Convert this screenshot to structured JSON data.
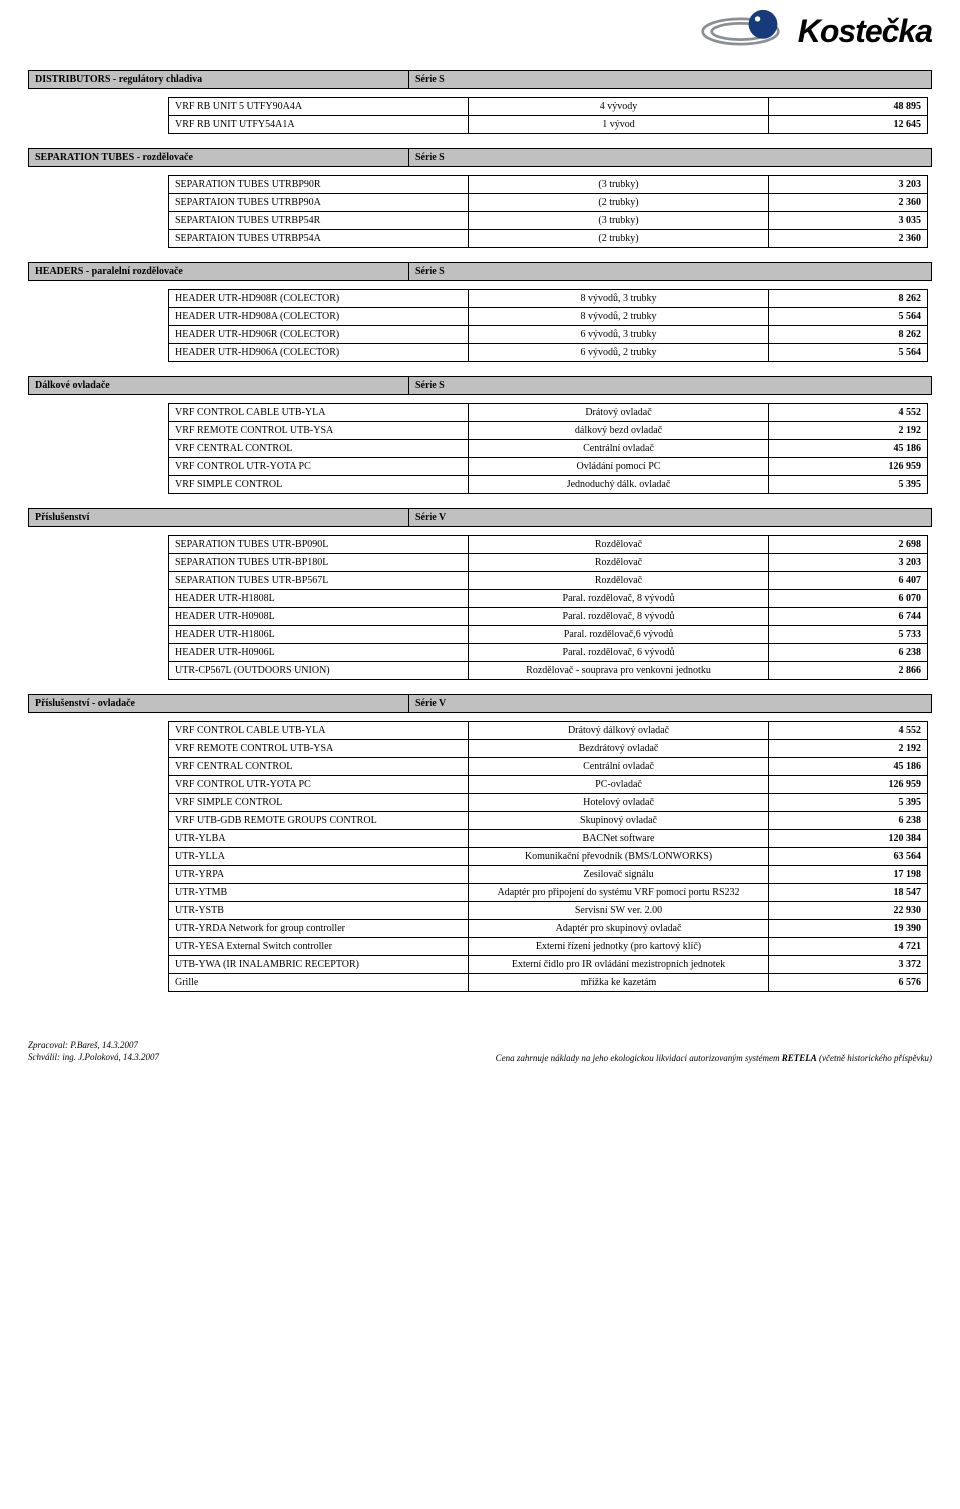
{
  "brand": {
    "name": "Kostečka"
  },
  "sections": [
    {
      "title": "DISTRIBUTORS - regulátory chladiva",
      "series": "Série S",
      "rows": [
        {
          "c1": "VRF RB UNIT 5 UTFY90A4A",
          "c2": "4 vývody",
          "c3": "48 895"
        },
        {
          "c1": "VRF RB UNIT UTFY54A1A",
          "c2": "1 vývod",
          "c3": "12 645"
        }
      ]
    },
    {
      "title": "SEPARATION TUBES - rozdělovače",
      "series": "Série S",
      "rows": [
        {
          "c1": "SEPARATION TUBES UTRBP90R",
          "c2": "(3 trubky)",
          "c3": "3 203"
        },
        {
          "c1": "SEPARTAION TUBES UTRBP90A",
          "c2": "(2 trubky)",
          "c3": "2 360"
        },
        {
          "c1": "SEPARTAION TUBES UTRBP54R",
          "c2": "(3 trubky)",
          "c3": "3 035"
        },
        {
          "c1": "SEPARTAION TUBES UTRBP54A",
          "c2": "(2 trubky)",
          "c3": "2 360"
        }
      ]
    },
    {
      "title": "HEADERS - paralelní rozdělovače",
      "series": "Série S",
      "rows": [
        {
          "c1": "HEADER UTR-HD908R (COLECTOR)",
          "c2": "8 vývodů, 3 trubky",
          "c3": "8 262"
        },
        {
          "c1": "HEADER UTR-HD908A (COLECTOR)",
          "c2": "8 vývodů, 2 trubky",
          "c3": "5 564"
        },
        {
          "c1": "HEADER UTR-HD906R (COLECTOR)",
          "c2": "6 vývodů, 3 trubky",
          "c3": "8 262"
        },
        {
          "c1": "HEADER UTR-HD906A (COLECTOR)",
          "c2": "6 vývodů, 2 trubky",
          "c3": "5 564"
        }
      ]
    },
    {
      "title": "Dálkové ovladače",
      "series": "Série S",
      "rows": [
        {
          "c1": "VRF CONTROL CABLE UTB-YLA",
          "c2": "Drátový ovladač",
          "c3": "4 552"
        },
        {
          "c1": "VRF REMOTE CONTROL UTB-YSA",
          "c2": "dálkový bezd ovladač",
          "c3": "2 192"
        },
        {
          "c1": "VRF CENTRAL CONTROL",
          "c2": "Centrální ovladač",
          "c3": "45 186"
        },
        {
          "c1": "VRF CONTROL UTR-YOTA PC",
          "c2": "Ovládání pomocí PC",
          "c3": "126 959"
        },
        {
          "c1": "VRF SIMPLE CONTROL",
          "c2": "Jednoduchý dálk. ovladač",
          "c3": "5 395"
        }
      ]
    },
    {
      "title": "Příslušenství",
      "series": "Série V",
      "rows": [
        {
          "c1": "SEPARATION TUBES UTR-BP090L",
          "c2": "Rozdělovač",
          "c3": "2 698"
        },
        {
          "c1": "SEPARATION TUBES UTR-BP180L",
          "c2": "Rozdělovač",
          "c3": "3 203"
        },
        {
          "c1": "SEPARATION TUBES UTR-BP567L",
          "c2": "Rozdělovač",
          "c3": "6 407"
        },
        {
          "c1": "HEADER UTR-H1808L",
          "c2": "Paral. rozdělovač, 8 vývodů",
          "c3": "6 070"
        },
        {
          "c1": "HEADER UTR-H0908L",
          "c2": "Paral. rozdělovač, 8 vývodů",
          "c3": "6 744"
        },
        {
          "c1": "HEADER UTR-H1806L",
          "c2": "Paral. rozdělovač,6 vývodů",
          "c3": "5 733"
        },
        {
          "c1": "HEADER UTR-H0906L",
          "c2": "Paral. rozdělovač, 6 vývodů",
          "c3": "6 238"
        },
        {
          "c1": "UTR-CP567L (OUTDOORS UNION)",
          "c2": "Rozdělovač - souprava pro venkovní jednotku",
          "c3": "2 866"
        }
      ]
    },
    {
      "title": "Příslušenství - ovladače",
      "series": "Série V",
      "rows": [
        {
          "c1": "VRF CONTROL CABLE UTB-YLA",
          "c2": "Drátový dálkový ovladač",
          "c3": "4 552"
        },
        {
          "c1": "VRF REMOTE CONTROL UTB-YSA",
          "c2": "Bezdrátový ovladač",
          "c3": "2 192"
        },
        {
          "c1": "VRF CENTRAL CONTROL",
          "c2": "Centrální ovladač",
          "c3": "45 186"
        },
        {
          "c1": "VRF CONTROL UTR-YOTA PC",
          "c2": "PC-ovladač",
          "c3": "126 959"
        },
        {
          "c1": "VRF SIMPLE CONTROL",
          "c2": "Hotelový ovladač",
          "c3": "5 395"
        },
        {
          "c1": "VRF UTB-GDB REMOTE GROUPS CONTROL",
          "c2": "Skupinový ovladač",
          "c3": "6 238"
        },
        {
          "c1": "UTR-YLBA",
          "c2": "BACNet software",
          "c3": "120 384"
        },
        {
          "c1": "UTR-YLLA",
          "c2": "Komunikační převodník (BMS/LONWORKS)",
          "c3": "63 564"
        },
        {
          "c1": "UTR-YRPA",
          "c2": "Zesilovač signálu",
          "c3": "17 198"
        },
        {
          "c1": "UTR-YTMB",
          "c2": "Adaptér pro připojení do systému VRF pomocí portu RS232",
          "c3": "18 547"
        },
        {
          "c1": "UTR-YSTB",
          "c2": "Servisní SW ver. 2.00",
          "c3": "22 930"
        },
        {
          "c1": "UTR-YRDA Network for group controller",
          "c2": "Adaptér pro skupinový ovladač",
          "c3": "19 390"
        },
        {
          "c1": "UTR-YESA External Switch controller",
          "c2": "Externí řízení jednotky (pro kartový klíč)",
          "c3": "4 721"
        },
        {
          "c1": "UTB-YWA (IR INALAMBRIC RECEPTOR)",
          "c2": "Externí čidlo pro IR ovládání mezistropních jednotek",
          "c3": "3 372"
        },
        {
          "c1": "Grille",
          "c2": "mřížka ke kazetám",
          "c3": "6 576"
        }
      ]
    }
  ],
  "footer": {
    "l1": "Zpracoval: P.Bareš, 14.3.2007",
    "l2": "Schválil: ing. J.Poloková, 14.3.2007",
    "r_pre": "Cena zahrnuje náklady na jeho ekologickou likvidaci autorizovaným systémem ",
    "r_bold": "RETELA",
    "r_post": " (včetně historického příspěvku)"
  }
}
